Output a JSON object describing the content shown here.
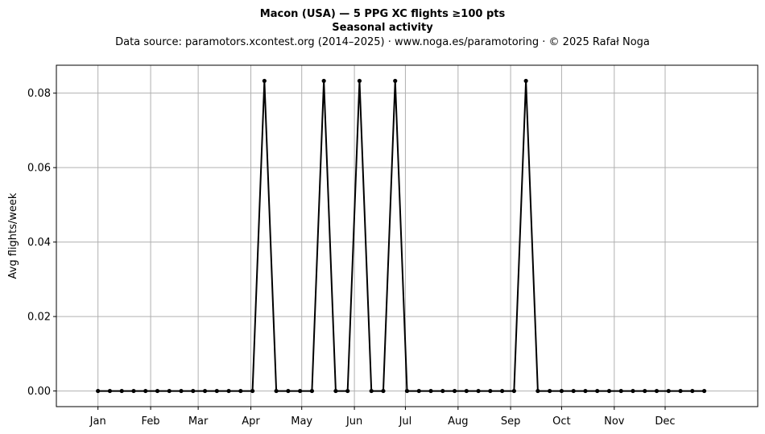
{
  "header": {
    "title": "Macon (USA)  —  5 PPG XC flights ≥100 pts",
    "subtitle": "Seasonal activity",
    "source": "Data source: paramotors.xcontest.org (2014–2025)  ·  www.noga.es/paramotoring  ·  © 2025 Rafał Noga"
  },
  "chart_data": {
    "type": "line",
    "title": "Macon (USA)  —  5 PPG XC flights ≥100 pts",
    "subtitle": "Seasonal activity",
    "xlabel": "",
    "ylabel": "Avg flights/week",
    "x_unit": "week of year",
    "x_ticks": [
      {
        "label": "Jan",
        "week": 1
      },
      {
        "label": "Feb",
        "week": 5.43
      },
      {
        "label": "Mar",
        "week": 9.43
      },
      {
        "label": "Apr",
        "week": 13.86
      },
      {
        "label": "May",
        "week": 18.14
      },
      {
        "label": "Jun",
        "week": 22.57
      },
      {
        "label": "Jul",
        "week": 26.86
      },
      {
        "label": "Aug",
        "week": 31.29
      },
      {
        "label": "Sep",
        "week": 35.71
      },
      {
        "label": "Oct",
        "week": 40
      },
      {
        "label": "Nov",
        "week": 44.43
      },
      {
        "label": "Dec",
        "week": 48.71
      }
    ],
    "y_ticks": [
      0.0,
      0.02,
      0.04,
      0.06,
      0.08
    ],
    "y_tick_labels": [
      "0.00",
      "0.02",
      "0.04",
      "0.06",
      "0.08"
    ],
    "xlim": [
      -2.5,
      56.5
    ],
    "ylim": [
      -0.0042,
      0.0875
    ],
    "grid": true,
    "series": [
      {
        "color": "#000000",
        "x": [
          1,
          2,
          3,
          4,
          5,
          6,
          7,
          8,
          9,
          10,
          11,
          12,
          13,
          14,
          15,
          16,
          17,
          18,
          19,
          20,
          21,
          22,
          23,
          24,
          25,
          26,
          27,
          28,
          29,
          30,
          31,
          32,
          33,
          34,
          35,
          36,
          37,
          38,
          39,
          40,
          41,
          42,
          43,
          44,
          45,
          46,
          47,
          48,
          49,
          50,
          51,
          52
        ],
        "values": [
          0,
          0,
          0,
          0,
          0,
          0,
          0,
          0,
          0,
          0,
          0,
          0,
          0,
          0,
          0.0833,
          0,
          0,
          0,
          0,
          0.0833,
          0,
          0,
          0.0833,
          0,
          0,
          0.0833,
          0,
          0,
          0,
          0,
          0,
          0,
          0,
          0,
          0,
          0,
          0.0833,
          0,
          0,
          0,
          0,
          0,
          0,
          0,
          0,
          0,
          0,
          0,
          0,
          0,
          0,
          0
        ]
      }
    ]
  }
}
